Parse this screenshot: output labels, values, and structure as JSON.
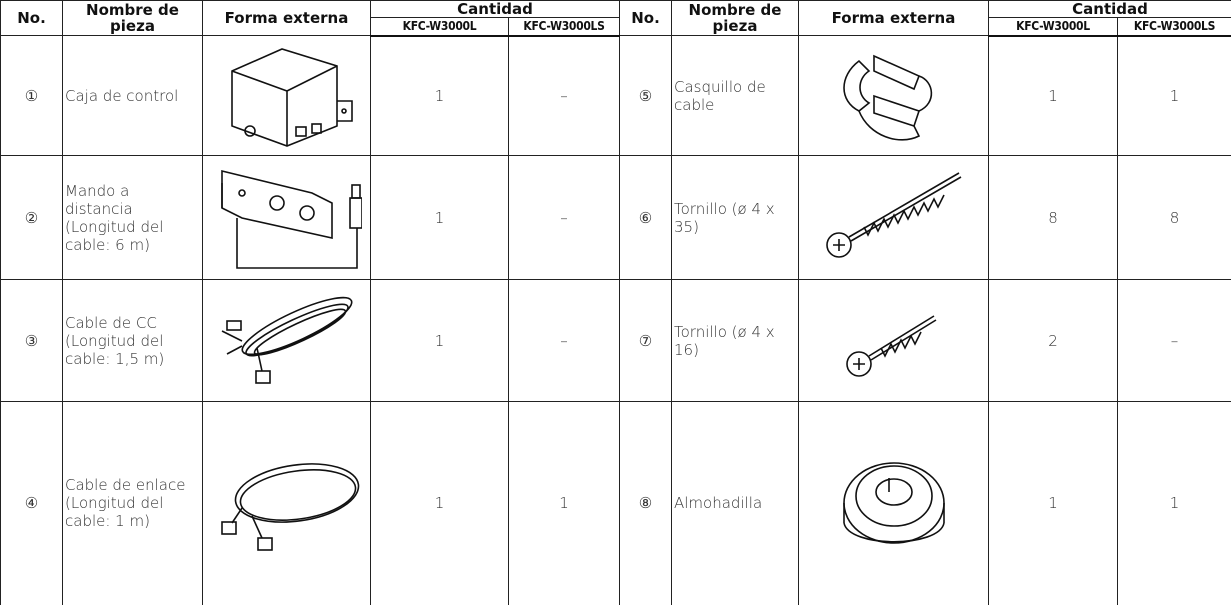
{
  "table": {
    "header": {
      "no": "No.",
      "name": "Nombre de pieza",
      "shape": "Forma externa",
      "quantity": "Cantidad",
      "models": [
        "KFC-W3000L",
        "KFC-W3000LS"
      ]
    },
    "items": [
      {
        "no": "①",
        "name": "Caja de control",
        "qty": [
          1,
          "–"
        ]
      },
      {
        "no": "②",
        "name": "Mando a distancia (Longitud del cable: 6 m)",
        "qty": [
          1,
          "–"
        ]
      },
      {
        "no": "③",
        "name": "Cable de CC (Longitud del cable: 1,5 m)",
        "qty": [
          1,
          "–"
        ]
      },
      {
        "no": "④",
        "name": "Cable de enlace (Longitud del cable: 1 m)",
        "qty": [
          1,
          1
        ]
      },
      {
        "no": "⑤",
        "name": "Casquillo de cable",
        "qty": [
          1,
          1
        ]
      },
      {
        "no": "⑥",
        "name": "Tornillo (ø 4 x 35)",
        "qty": [
          8,
          8
        ]
      },
      {
        "no": "⑦",
        "name": "Tornillo (ø 4 x 16)",
        "qty": [
          2,
          "–"
        ]
      },
      {
        "no": "⑧",
        "name": "Almohadilla",
        "qty": [
          1,
          1
        ]
      }
    ]
  }
}
